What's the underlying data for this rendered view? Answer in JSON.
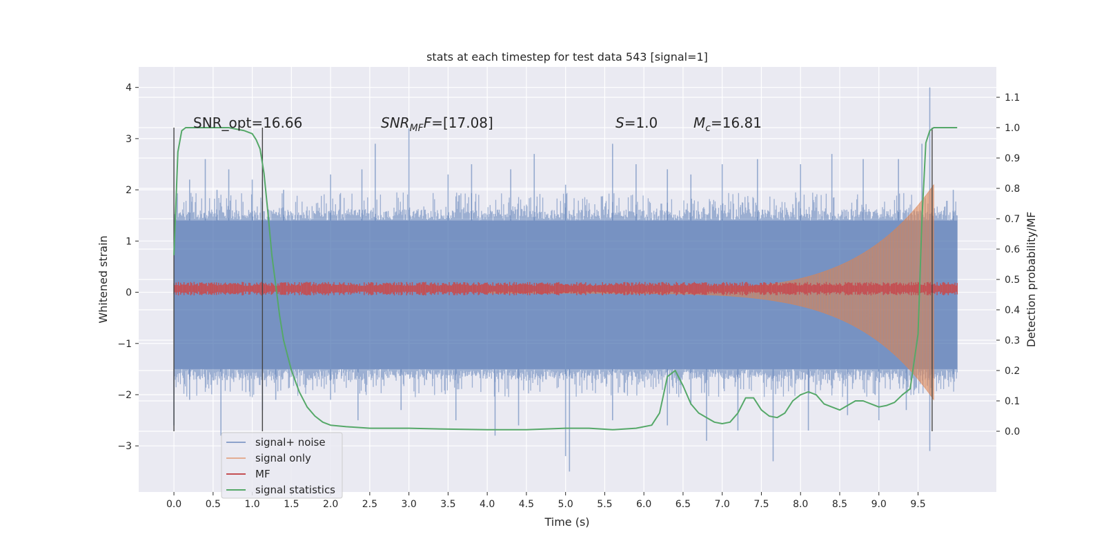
{
  "chart_data": {
    "type": "line",
    "title": "stats at each timestep for test data 543 [signal=1]",
    "xlabel": "Time (s)",
    "ylabel": "Whitened strain",
    "y2label": "Detection probability/MF",
    "xlim": [
      -0.45,
      10.5
    ],
    "ylim": [
      -3.9,
      4.4
    ],
    "y2lim": [
      -0.2,
      1.2
    ],
    "xticks": [
      "0.0",
      "0.5",
      "1.0",
      "1.5",
      "2.0",
      "2.5",
      "3.0",
      "3.5",
      "4.0",
      "4.5",
      "5.0",
      "5.5",
      "6.0",
      "6.5",
      "7.0",
      "7.5",
      "8.0",
      "8.5",
      "9.0",
      "9.5"
    ],
    "yticks": [
      "4",
      "3",
      "2",
      "1",
      "0",
      "−1",
      "−2",
      "−3"
    ],
    "y2ticks": [
      "1.1",
      "1.0",
      "0.9",
      "0.8",
      "0.7",
      "0.6",
      "0.5",
      "0.4",
      "0.3",
      "0.2",
      "0.1",
      "0.0"
    ],
    "grid": true,
    "annotations": {
      "snr_opt": "SNR_opt=16.66",
      "snr_mf_sym": "SNR",
      "snr_mf_sub": "MF",
      "snr_mf_val": "=[17.08]",
      "s_sym": "S",
      "s_val": "=1.0",
      "mc_sym": "M",
      "mc_sub": "c",
      "mc_val": "=16.81"
    },
    "vlines_x": [
      0.0,
      1.13,
      9.68
    ],
    "series": [
      {
        "name": "signal+ noise",
        "color": "#4c72b0",
        "envelope": {
          "x": [
            0,
            10
          ],
          "core_low": -1.5,
          "core_high": 1.4
        },
        "spikes_high": [
          [
            0.02,
            1.5
          ],
          [
            0.2,
            2.2
          ],
          [
            0.4,
            2.6
          ],
          [
            0.55,
            2.0
          ],
          [
            0.7,
            2.4
          ],
          [
            1.0,
            2.2
          ],
          [
            1.13,
            2.2
          ],
          [
            1.4,
            2.0
          ],
          [
            2.0,
            2.3
          ],
          [
            2.4,
            2.4
          ],
          [
            2.57,
            2.9
          ],
          [
            3.0,
            3.2
          ],
          [
            3.5,
            2.3
          ],
          [
            3.8,
            2.5
          ],
          [
            4.3,
            2.4
          ],
          [
            4.6,
            2.7
          ],
          [
            5.0,
            2.1
          ],
          [
            5.6,
            2.9
          ],
          [
            5.9,
            2.5
          ],
          [
            6.3,
            2.4
          ],
          [
            6.6,
            2.3
          ],
          [
            7.0,
            2.5
          ],
          [
            7.45,
            2.6
          ],
          [
            8.0,
            2.5
          ],
          [
            8.4,
            2.7
          ],
          [
            8.8,
            2.6
          ],
          [
            9.25,
            2.6
          ],
          [
            9.55,
            2.9
          ],
          [
            9.65,
            4.0
          ],
          [
            9.95,
            2.0
          ]
        ],
        "spikes_low": [
          [
            0.0,
            -2.6
          ],
          [
            0.2,
            -2.1
          ],
          [
            0.6,
            -2.8
          ],
          [
            1.13,
            -2.3
          ],
          [
            1.3,
            -2.1
          ],
          [
            2.0,
            -2.1
          ],
          [
            2.35,
            -2.5
          ],
          [
            2.9,
            -2.3
          ],
          [
            3.6,
            -2.5
          ],
          [
            4.1,
            -2.8
          ],
          [
            4.4,
            -2.6
          ],
          [
            5.0,
            -3.2
          ],
          [
            5.05,
            -3.5
          ],
          [
            5.6,
            -2.5
          ],
          [
            6.3,
            -2.6
          ],
          [
            6.6,
            -2.2
          ],
          [
            6.8,
            -2.9
          ],
          [
            7.2,
            -2.7
          ],
          [
            7.65,
            -3.3
          ],
          [
            8.1,
            -2.7
          ],
          [
            8.6,
            -2.4
          ],
          [
            9.0,
            -2.5
          ],
          [
            9.35,
            -2.3
          ],
          [
            9.65,
            -3.1
          ],
          [
            9.95,
            -1.6
          ]
        ]
      },
      {
        "name": "signal only",
        "color": "#dd8452",
        "chirp": {
          "x": [
            4.0,
            9.7
          ],
          "amp_start": 0.02,
          "amp_end": 2.1
        }
      },
      {
        "name": "MF",
        "color": "#c44e52",
        "band": {
          "x": [
            0,
            10
          ],
          "center": 0.07,
          "half_width": 0.11
        }
      },
      {
        "name": "signal statistics",
        "color": "#55a868",
        "axis": "right",
        "x": [
          0.0,
          0.05,
          0.1,
          0.15,
          0.2,
          0.3,
          0.5,
          0.7,
          0.9,
          1.0,
          1.05,
          1.1,
          1.15,
          1.2,
          1.25,
          1.3,
          1.35,
          1.4,
          1.5,
          1.6,
          1.7,
          1.8,
          1.9,
          2.0,
          2.2,
          2.5,
          3.0,
          3.5,
          4.0,
          4.5,
          5.0,
          5.3,
          5.6,
          5.9,
          6.1,
          6.2,
          6.25,
          6.3,
          6.35,
          6.4,
          6.5,
          6.6,
          6.7,
          6.8,
          6.9,
          7.0,
          7.1,
          7.2,
          7.3,
          7.4,
          7.5,
          7.6,
          7.7,
          7.8,
          7.9,
          8.0,
          8.1,
          8.2,
          8.3,
          8.4,
          8.5,
          8.6,
          8.7,
          8.8,
          8.9,
          9.0,
          9.1,
          9.2,
          9.3,
          9.4,
          9.5,
          9.55,
          9.6,
          9.65,
          9.7,
          9.75,
          9.8,
          9.9,
          10.0
        ],
        "values": [
          0.58,
          0.92,
          0.99,
          1.0,
          1.0,
          1.0,
          1.0,
          1.0,
          0.99,
          0.98,
          0.96,
          0.93,
          0.85,
          0.72,
          0.58,
          0.48,
          0.38,
          0.3,
          0.2,
          0.13,
          0.08,
          0.05,
          0.03,
          0.02,
          0.015,
          0.01,
          0.01,
          0.007,
          0.005,
          0.005,
          0.01,
          0.01,
          0.005,
          0.01,
          0.02,
          0.06,
          0.12,
          0.18,
          0.19,
          0.2,
          0.15,
          0.09,
          0.06,
          0.045,
          0.03,
          0.025,
          0.03,
          0.06,
          0.11,
          0.11,
          0.07,
          0.05,
          0.045,
          0.06,
          0.1,
          0.12,
          0.13,
          0.12,
          0.09,
          0.08,
          0.07,
          0.085,
          0.1,
          0.1,
          0.09,
          0.08,
          0.085,
          0.095,
          0.12,
          0.14,
          0.32,
          0.7,
          0.95,
          0.99,
          1.0,
          1.0,
          1.0,
          1.0,
          1.0
        ]
      }
    ],
    "legend": {
      "placement": "lower-left"
    }
  }
}
